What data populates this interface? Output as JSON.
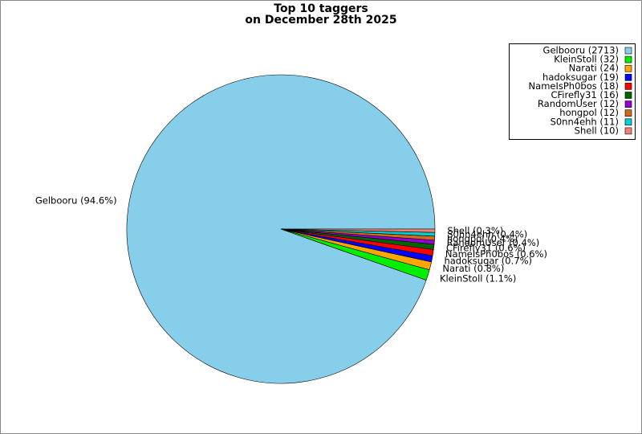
{
  "chart_data": {
    "type": "pie",
    "title": "Top 10 taggers",
    "subtitle": "on December 28th 2025",
    "values": [
      2713,
      32,
      24,
      19,
      18,
      16,
      12,
      12,
      11,
      10
    ],
    "legend_labels": [
      "Gelbooru (2713)",
      "KleinStoll (32)",
      "Narati (24)",
      "hadoksugar (19)",
      "NameIsPh0bos (18)",
      "CFirefly31 (16)",
      "RandomUser (12)",
      "hongpol (12)",
      "S0nn4ehh (11)",
      "Shell (10)"
    ],
    "value_labels": [
      "Gelbooru (94.6%)",
      "KleinStoll (1.1%)",
      "Narati (0.8%)",
      "hadoksugar (0.7%)",
      "NameIsPh0bos (0.6%)",
      "CFirefly31 (0.6%)",
      "RandomUser (0.4%)",
      "hongpol (0.4%)",
      "S0nn4ehh (0.4%)",
      "Shell (0.3%)"
    ],
    "colors": [
      "#87ceeb",
      "#00ee00",
      "#ffa500",
      "#0000ff",
      "#ff0000",
      "#006400",
      "#9400d3",
      "#d2691e",
      "#00ced1",
      "#fa8072"
    ],
    "legend": "upper right"
  }
}
